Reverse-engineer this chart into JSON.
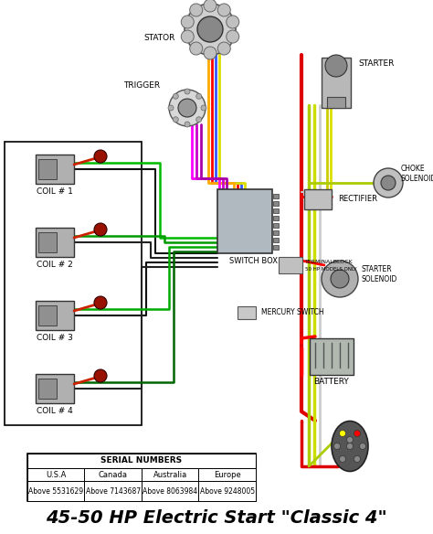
{
  "title": "45-50 HP Electric Start \"Classic 4\"",
  "title_fontsize": 14,
  "title_fontweight": "bold",
  "background_color": "#ffffff",
  "serial_numbers": {
    "header": "SERIAL NUMBERS",
    "columns": [
      "U.S.A",
      "Canada",
      "Australia",
      "Europe"
    ],
    "values": [
      "Above 5531629",
      "Above 7143687",
      "Above 8063984",
      "Above 9248005"
    ]
  },
  "figsize": [
    4.74,
    5.84
  ],
  "dpi": 100
}
